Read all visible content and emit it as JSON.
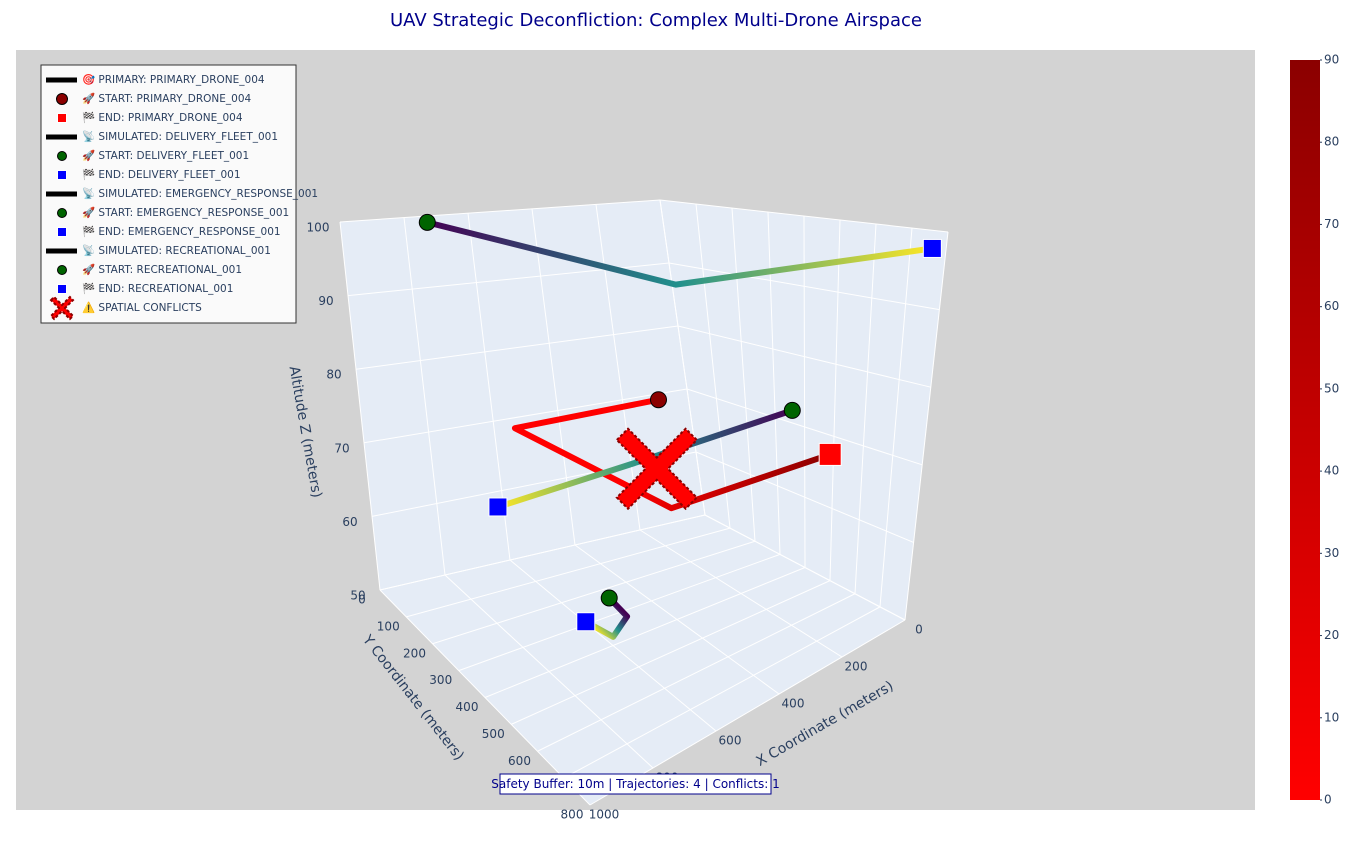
{
  "chart_data": {
    "type": "scatter3d",
    "title": "UAV Strategic Deconfliction: Complex Multi-Drone Airspace",
    "xlabel": "X Coordinate (meters)",
    "ylabel": "Y Coordinate (meters)",
    "zlabel": "Altitude Z (meters)",
    "xlim": [
      0,
      1000
    ],
    "ylim": [
      0,
      800
    ],
    "zlim": [
      50,
      100
    ],
    "xticks": [
      0,
      200,
      400,
      600,
      800,
      1000
    ],
    "yticks": [
      0,
      100,
      200,
      300,
      400,
      500,
      600,
      700,
      800
    ],
    "zticks": [
      50,
      60,
      70,
      80,
      90,
      100
    ],
    "grid": true,
    "legend": "upper left",
    "annotation": "Safety Buffer: 10m | Trajectories: 4 | Conflicts: 1",
    "colorbar": {
      "colorscale": [
        "#ff0000",
        "#8b0000"
      ],
      "lim": [
        0,
        90
      ],
      "ticks": [
        0,
        10,
        20,
        30,
        40,
        50,
        60,
        70,
        80,
        90
      ]
    },
    "series": [
      {
        "name": "🎯 PRIMARY: PRIMARY_DRONE_004",
        "mode": "lines",
        "colors": [
          "#ff0000",
          "#8b0000"
        ],
        "x": [
          400,
          750,
          500,
          150
        ],
        "y": [
          350,
          250,
          500,
          650
        ],
        "z": [
          78,
          76,
          68,
          72
        ]
      },
      {
        "name": "🚀 START: PRIMARY_DRONE_004",
        "mode": "markers",
        "symbol": "circle",
        "color": "#8b0000",
        "x": [
          400
        ],
        "y": [
          350
        ],
        "z": [
          78
        ]
      },
      {
        "name": "🏁 END: PRIMARY_DRONE_004",
        "mode": "markers",
        "symbol": "square",
        "color": "#ff0000",
        "x": [
          150
        ],
        "y": [
          650
        ],
        "z": [
          72
        ]
      },
      {
        "name": "📡 SIMULATED: DELIVERY_FLEET_001",
        "mode": "lines",
        "colors": [
          "#440154",
          "#21908d",
          "#fde725"
        ],
        "x": [
          150,
          520,
          900
        ],
        "y": [
          520,
          430,
          350
        ],
        "z": [
          76,
          73,
          70
        ]
      },
      {
        "name": "🚀 START: DELIVERY_FLEET_001",
        "mode": "markers",
        "symbol": "circle",
        "color": "#006400",
        "x": [
          150
        ],
        "y": [
          520
        ],
        "z": [
          76
        ]
      },
      {
        "name": "🏁 END: DELIVERY_FLEET_001",
        "mode": "markers",
        "symbol": "square",
        "color": "#0000ff",
        "x": [
          900
        ],
        "y": [
          350
        ],
        "z": [
          70
        ]
      },
      {
        "name": "📡 SIMULATED: EMERGENCY_RESPONSE_001",
        "mode": "lines",
        "colors": [
          "#440154",
          "#21908d",
          "#fde725"
        ],
        "x": [
          780,
          450,
          20
        ],
        "y": [
          50,
          460,
          780
        ],
        "z": [
          100,
          95,
          98
        ]
      },
      {
        "name": "🚀 START: EMERGENCY_RESPONSE_001",
        "mode": "markers",
        "symbol": "circle",
        "color": "#006400",
        "x": [
          780
        ],
        "y": [
          50
        ],
        "z": [
          100
        ]
      },
      {
        "name": "🏁 END: EMERGENCY_RESPONSE_001",
        "mode": "markers",
        "symbol": "square",
        "color": "#0000ff",
        "x": [
          20
        ],
        "y": [
          780
        ],
        "z": [
          98
        ]
      },
      {
        "name": "📡 SIMULATED: RECREATIONAL_001",
        "mode": "lines",
        "colors": [
          "#440154",
          "#21908d",
          "#fde725"
        ],
        "x": [
          650,
          620,
          680,
          740
        ],
        "y": [
          450,
          480,
          500,
          470
        ],
        "z": [
          58,
          56,
          55,
          57
        ]
      },
      {
        "name": "🚀 START: RECREATIONAL_001",
        "mode": "markers",
        "symbol": "circle",
        "color": "#006400",
        "x": [
          650
        ],
        "y": [
          450
        ],
        "z": [
          58
        ]
      },
      {
        "name": "🏁 END: RECREATIONAL_001",
        "mode": "markers",
        "symbol": "square",
        "color": "#0000ff",
        "x": [
          740
        ],
        "y": [
          470
        ],
        "z": [
          57
        ]
      },
      {
        "name": "⚠️ SPATIAL CONFLICTS",
        "mode": "markers",
        "symbol": "x",
        "color": "#ff0000",
        "x": [
          500
        ],
        "y": [
          450
        ],
        "z": [
          72
        ]
      }
    ]
  }
}
